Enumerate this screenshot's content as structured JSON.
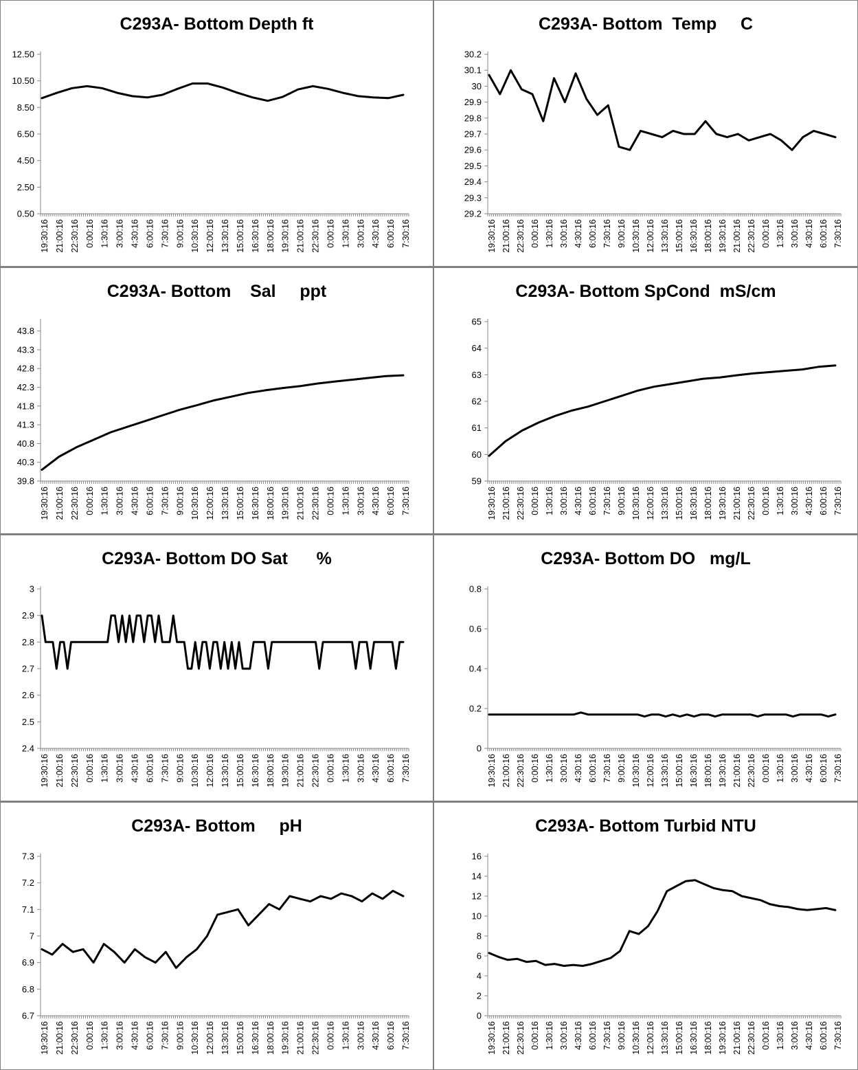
{
  "x_labels": [
    "19:30:16",
    "21:00:16",
    "22:30:16",
    "0:00:16",
    "1:30:16",
    "3:00:16",
    "4:30:16",
    "6:00:16",
    "7:30:16",
    "9:00:16",
    "10:30:16",
    "12:00:16",
    "13:30:16",
    "15:00:16",
    "16:30:16",
    "18:00:16",
    "19:30:16",
    "21:00:16",
    "22:30:16",
    "0:00:16",
    "1:30:16",
    "3:00:16",
    "4:30:16",
    "6:00:16",
    "7:30:16"
  ],
  "chart_data": [
    {
      "id": "depth",
      "type": "line",
      "title": "C293A- Bottom Depth ft",
      "yticks": [
        "0.50",
        "2.50",
        "4.50",
        "6.50",
        "8.50",
        "10.50",
        "12.50"
      ],
      "ylim": [
        0.5,
        12.5
      ],
      "grid": false,
      "legend": "none",
      "series": [
        {
          "values": [
            9.2,
            9.6,
            9.95,
            10.1,
            9.95,
            9.6,
            9.35,
            9.25,
            9.45,
            9.9,
            10.3,
            10.3,
            10.0,
            9.6,
            9.25,
            9.0,
            9.3,
            9.85,
            10.1,
            9.9,
            9.6,
            9.35,
            9.25,
            9.2,
            9.45
          ]
        }
      ]
    },
    {
      "id": "temp",
      "type": "line",
      "title": "C293A- Bottom  Temp     C",
      "yticks": [
        "29.2",
        "29.3",
        "29.4",
        "29.5",
        "29.6",
        "29.7",
        "29.8",
        "29.9",
        "30",
        "30.1",
        "30.2"
      ],
      "ylim": [
        29.2,
        30.2
      ],
      "grid": false,
      "legend": "none",
      "series": [
        {
          "values": [
            30.07,
            29.95,
            30.1,
            29.98,
            29.95,
            29.78,
            30.05,
            29.9,
            30.08,
            29.92,
            29.82,
            29.88,
            29.62,
            29.6,
            29.72,
            29.7,
            29.68,
            29.72,
            29.7,
            29.7,
            29.78,
            29.7,
            29.68,
            29.7,
            29.66,
            29.68,
            29.7,
            29.66,
            29.6,
            29.68,
            29.72,
            29.7,
            29.68
          ]
        }
      ]
    },
    {
      "id": "sal",
      "type": "line",
      "title": "C293A- Bottom    Sal     ppt",
      "yticks": [
        "39.8",
        "40.3",
        "40.8",
        "41.3",
        "41.8",
        "42.3",
        "42.8",
        "43.3",
        "43.8"
      ],
      "ylim": [
        39.8,
        44.05
      ],
      "grid": false,
      "legend": "none",
      "series": [
        {
          "values": [
            40.1,
            40.45,
            40.7,
            40.9,
            41.1,
            41.25,
            41.4,
            41.55,
            41.7,
            41.82,
            41.95,
            42.05,
            42.15,
            42.22,
            42.28,
            42.33,
            42.4,
            42.45,
            42.5,
            42.55,
            42.6,
            42.62
          ]
        }
      ]
    },
    {
      "id": "spcond",
      "type": "line",
      "title": "C293A- Bottom SpCond  mS/cm",
      "yticks": [
        "59",
        "60",
        "61",
        "62",
        "63",
        "64",
        "65"
      ],
      "ylim": [
        59,
        65
      ],
      "grid": false,
      "legend": "none",
      "series": [
        {
          "values": [
            59.95,
            60.5,
            60.9,
            61.2,
            61.45,
            61.65,
            61.8,
            62.0,
            62.2,
            62.4,
            62.55,
            62.65,
            62.75,
            62.85,
            62.9,
            62.98,
            63.05,
            63.1,
            63.15,
            63.2,
            63.3,
            63.35
          ]
        }
      ]
    },
    {
      "id": "dosat",
      "type": "line",
      "title": "C293A- Bottom DO Sat      %",
      "yticks": [
        "2.4",
        "2.5",
        "2.6",
        "2.7",
        "2.8",
        "2.9",
        "3"
      ],
      "ylim": [
        2.4,
        3.0
      ],
      "grid": false,
      "legend": "none",
      "series": [
        {
          "values": [
            2.9,
            2.8,
            2.8,
            2.8,
            2.7,
            2.8,
            2.8,
            2.7,
            2.8,
            2.8,
            2.8,
            2.8,
            2.8,
            2.8,
            2.8,
            2.8,
            2.8,
            2.8,
            2.8,
            2.9,
            2.9,
            2.8,
            2.9,
            2.8,
            2.9,
            2.8,
            2.9,
            2.9,
            2.8,
            2.9,
            2.9,
            2.8,
            2.9,
            2.8,
            2.8,
            2.8,
            2.9,
            2.8,
            2.8,
            2.8,
            2.7,
            2.7,
            2.8,
            2.7,
            2.8,
            2.8,
            2.7,
            2.8,
            2.8,
            2.7,
            2.8,
            2.7,
            2.8,
            2.7,
            2.8,
            2.7,
            2.7,
            2.7,
            2.8,
            2.8,
            2.8,
            2.8,
            2.7,
            2.8,
            2.8,
            2.8,
            2.8,
            2.8,
            2.8,
            2.8,
            2.8,
            2.8,
            2.8,
            2.8,
            2.8,
            2.8,
            2.7,
            2.8,
            2.8,
            2.8,
            2.8,
            2.8,
            2.8,
            2.8,
            2.8,
            2.8,
            2.7,
            2.8,
            2.8,
            2.8,
            2.7,
            2.8,
            2.8,
            2.8,
            2.8,
            2.8,
            2.8,
            2.7,
            2.8,
            2.8
          ]
        }
      ]
    },
    {
      "id": "do",
      "type": "line",
      "title": "C293A- Bottom DO   mg/L",
      "yticks": [
        "0",
        "0.2",
        "0.4",
        "0.6",
        "0.8"
      ],
      "ylim": [
        0,
        0.8
      ],
      "grid": false,
      "legend": "none",
      "series": [
        {
          "values": [
            0.17,
            0.17,
            0.17,
            0.17,
            0.17,
            0.17,
            0.17,
            0.17,
            0.17,
            0.17,
            0.17,
            0.17,
            0.17,
            0.18,
            0.17,
            0.17,
            0.17,
            0.17,
            0.17,
            0.17,
            0.17,
            0.17,
            0.16,
            0.17,
            0.17,
            0.16,
            0.17,
            0.16,
            0.17,
            0.16,
            0.17,
            0.17,
            0.16,
            0.17,
            0.17,
            0.17,
            0.17,
            0.17,
            0.16,
            0.17,
            0.17,
            0.17,
            0.17,
            0.16,
            0.17,
            0.17,
            0.17,
            0.17,
            0.16,
            0.17
          ]
        }
      ]
    },
    {
      "id": "ph",
      "type": "line",
      "title": "C293A- Bottom     pH",
      "yticks": [
        "6.7",
        "6.8",
        "6.9",
        "7",
        "7.1",
        "7.2",
        "7.3"
      ],
      "ylim": [
        6.7,
        7.3
      ],
      "grid": false,
      "legend": "none",
      "series": [
        {
          "values": [
            6.95,
            6.93,
            6.97,
            6.94,
            6.95,
            6.9,
            6.97,
            6.94,
            6.9,
            6.95,
            6.92,
            6.9,
            6.94,
            6.88,
            6.92,
            6.95,
            7.0,
            7.08,
            7.09,
            7.1,
            7.04,
            7.08,
            7.12,
            7.1,
            7.15,
            7.14,
            7.13,
            7.15,
            7.14,
            7.16,
            7.15,
            7.13,
            7.16,
            7.14,
            7.17,
            7.15
          ]
        }
      ]
    },
    {
      "id": "turbid",
      "type": "line",
      "title": "C293A- Bottom Turbid NTU",
      "yticks": [
        "0",
        "2",
        "4",
        "6",
        "8",
        "10",
        "12",
        "14",
        "16"
      ],
      "ylim": [
        0,
        16
      ],
      "grid": false,
      "legend": "none",
      "series": [
        {
          "values": [
            6.3,
            5.9,
            5.6,
            5.7,
            5.4,
            5.5,
            5.1,
            5.2,
            5.0,
            5.1,
            5.0,
            5.2,
            5.5,
            5.8,
            6.5,
            8.5,
            8.2,
            9.0,
            10.5,
            12.5,
            13.0,
            13.5,
            13.6,
            13.2,
            12.8,
            12.6,
            12.5,
            12.0,
            11.8,
            11.6,
            11.2,
            11.0,
            10.9,
            10.7,
            10.6,
            10.7,
            10.8,
            10.6
          ]
        }
      ]
    }
  ]
}
